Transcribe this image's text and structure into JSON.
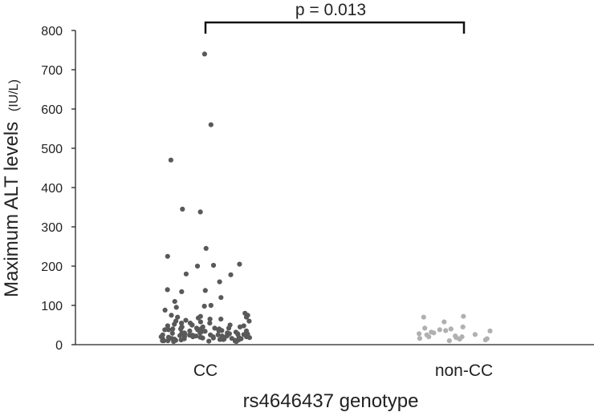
{
  "chart_data": {
    "type": "scatter",
    "xlabel": "rs4646437 genotype",
    "ylabel": "Maximum ALT levels",
    "ylabel_unit": "(IU/L)",
    "ylim": [
      0,
      800
    ],
    "yticks": [
      0,
      100,
      200,
      300,
      400,
      500,
      600,
      700,
      800
    ],
    "grid": false,
    "categories": [
      "CC",
      "non-CC"
    ],
    "annotation": "p = 0.013",
    "series": [
      {
        "category": "CC",
        "color": "#595959",
        "values": [
          740,
          560,
          470,
          345,
          338,
          245,
          225,
          205,
          202,
          200,
          180,
          178,
          160,
          140,
          138,
          135,
          120,
          110,
          100,
          98,
          95,
          88,
          80,
          75,
          75,
          72,
          70,
          70,
          68,
          65,
          65,
          62,
          60,
          60,
          58,
          55,
          55,
          55,
          52,
          50,
          50,
          50,
          48,
          48,
          45,
          45,
          45,
          45,
          42,
          42,
          42,
          40,
          40,
          40,
          40,
          38,
          38,
          38,
          36,
          36,
          35,
          35,
          35,
          34,
          33,
          32,
          32,
          30,
          30,
          30,
          30,
          29,
          28,
          28,
          28,
          27,
          26,
          26,
          25,
          25,
          25,
          25,
          24,
          24,
          23,
          22,
          22,
          22,
          21,
          20,
          20,
          20,
          20,
          19,
          19,
          18,
          18,
          18,
          17,
          17,
          16,
          16,
          15,
          15,
          15,
          14,
          14,
          13,
          13,
          12,
          12,
          11,
          11,
          10,
          10,
          10,
          9,
          9,
          8,
          8
        ]
      },
      {
        "category": "non-CC",
        "color": "#b0b0b0",
        "values": [
          72,
          70,
          58,
          45,
          42,
          40,
          38,
          36,
          35,
          32,
          30,
          28,
          26,
          25,
          22,
          20,
          20,
          18,
          16,
          15,
          14,
          12,
          10
        ]
      }
    ]
  }
}
